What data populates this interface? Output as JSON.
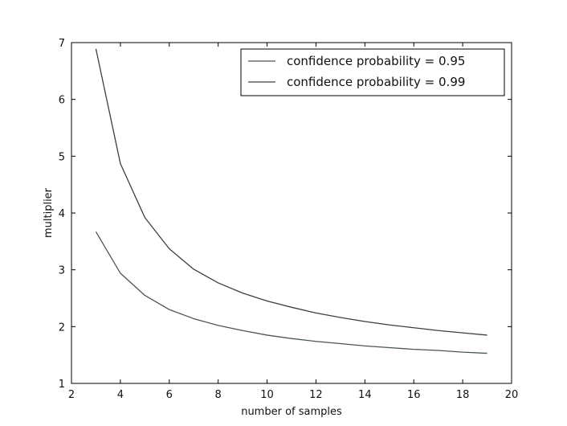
{
  "chart_data": {
    "type": "line",
    "title": "",
    "xlabel": "number of samples",
    "ylabel": "multiplier",
    "xlim": [
      2,
      20
    ],
    "ylim": [
      1,
      7
    ],
    "xticks": [
      2,
      4,
      6,
      8,
      10,
      12,
      14,
      16,
      18,
      20
    ],
    "yticks": [
      1,
      2,
      3,
      4,
      5,
      6,
      7
    ],
    "grid": false,
    "legend_position": "top-right",
    "x": [
      3,
      4,
      5,
      6,
      7,
      8,
      9,
      10,
      11,
      12,
      13,
      14,
      15,
      16,
      17,
      18,
      19
    ],
    "series": [
      {
        "name": "confidence probability = 0.95",
        "color": "#4a5652",
        "values": [
          3.67,
          2.94,
          2.55,
          2.3,
          2.14,
          2.02,
          1.93,
          1.85,
          1.79,
          1.74,
          1.7,
          1.66,
          1.63,
          1.6,
          1.58,
          1.55,
          1.53
        ]
      },
      {
        "name": "confidence probability = 0.99",
        "color": "#39403d",
        "values": [
          6.89,
          4.87,
          3.92,
          3.37,
          3.01,
          2.77,
          2.59,
          2.45,
          2.34,
          2.24,
          2.16,
          2.09,
          2.03,
          1.98,
          1.93,
          1.89,
          1.85
        ]
      }
    ]
  }
}
